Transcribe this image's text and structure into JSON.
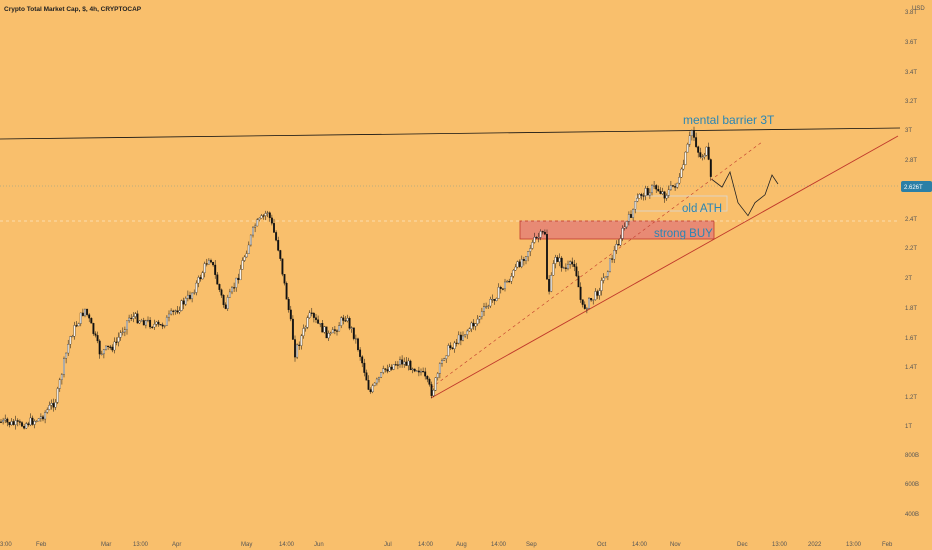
{
  "chart_title": "Crypto Total Market Cap, $, 4h, CRYPTOCAP",
  "currency_label": "USD",
  "colors": {
    "background": "#f9bf6c",
    "candle_up": "#f2f2f2",
    "candle_down": "#111111",
    "trendline": "#c0392b",
    "resistance": "#111111",
    "zone_fill": "#e88a74",
    "zone_border": "#c0392b",
    "annotation_text": "#2a86b4",
    "price_badge": "#2b7fa6"
  },
  "chart_data": {
    "type": "candlestick",
    "title": "Crypto Total Market Cap, $, 4h, CRYPTOCAP",
    "y_scale": "log",
    "ylim": [
      360000000000,
      3900000000000
    ],
    "y_ticks": [
      "3.8T",
      "3.6T",
      "3.4T",
      "3.2T",
      "3T",
      "2.8T",
      "2.6T",
      "2.4T",
      "2.2T",
      "2T",
      "1.8T",
      "1.6T",
      "1.4T",
      "1.2T",
      "1T",
      "800B",
      "600B",
      "400B"
    ],
    "x_ticks": [
      "3:00",
      "Feb",
      "Mar",
      "13:00",
      "Apr",
      "May",
      "14:00",
      "Jun",
      "Jul",
      "14:00",
      "Aug",
      "14:00",
      "Sep",
      "Oct",
      "14:00",
      "Nov",
      "Dec",
      "13:00",
      "2022",
      "13:00",
      "Feb"
    ],
    "current_price_label": "2.626T",
    "price_path": [
      [
        0,
        0.95
      ],
      [
        20,
        0.92
      ],
      [
        40,
        0.98
      ],
      [
        55,
        1.15
      ],
      [
        70,
        1.55
      ],
      [
        85,
        1.75
      ],
      [
        100,
        1.45
      ],
      [
        115,
        1.5
      ],
      [
        130,
        1.7
      ],
      [
        160,
        1.62
      ],
      [
        190,
        1.85
      ],
      [
        210,
        2.15
      ],
      [
        225,
        1.75
      ],
      [
        240,
        2.05
      ],
      [
        255,
        2.35
      ],
      [
        268,
        2.45
      ],
      [
        280,
        2.15
      ],
      [
        295,
        1.45
      ],
      [
        310,
        1.7
      ],
      [
        330,
        1.55
      ],
      [
        345,
        1.7
      ],
      [
        355,
        1.55
      ],
      [
        370,
        1.22
      ],
      [
        385,
        1.35
      ],
      [
        400,
        1.4
      ],
      [
        420,
        1.35
      ],
      [
        432,
        1.22
      ],
      [
        445,
        1.45
      ],
      [
        460,
        1.55
      ],
      [
        475,
        1.65
      ],
      [
        495,
        1.85
      ],
      [
        515,
        2.05
      ],
      [
        535,
        2.25
      ],
      [
        545,
        2.3
      ],
      [
        548,
        1.85
      ],
      [
        555,
        2.15
      ],
      [
        565,
        2.05
      ],
      [
        575,
        2.1
      ],
      [
        582,
        1.75
      ],
      [
        595,
        1.85
      ],
      [
        610,
        2.1
      ],
      [
        625,
        2.35
      ],
      [
        640,
        2.55
      ],
      [
        655,
        2.6
      ],
      [
        665,
        2.55
      ],
      [
        680,
        2.65
      ],
      [
        692,
        3.0
      ],
      [
        700,
        2.8
      ],
      [
        707,
        2.85
      ],
      [
        712,
        2.58
      ]
    ],
    "projection_path": [
      [
        712,
        2.65
      ],
      [
        722,
        2.6
      ],
      [
        730,
        2.7
      ],
      [
        738,
        2.5
      ],
      [
        748,
        2.42
      ],
      [
        755,
        2.5
      ],
      [
        765,
        2.55
      ],
      [
        772,
        2.68
      ],
      [
        778,
        2.62
      ]
    ],
    "annotations": [
      {
        "text": "mental barrier 3T"
      },
      {
        "text": "old ATH"
      },
      {
        "text": "strong BUY"
      }
    ]
  }
}
